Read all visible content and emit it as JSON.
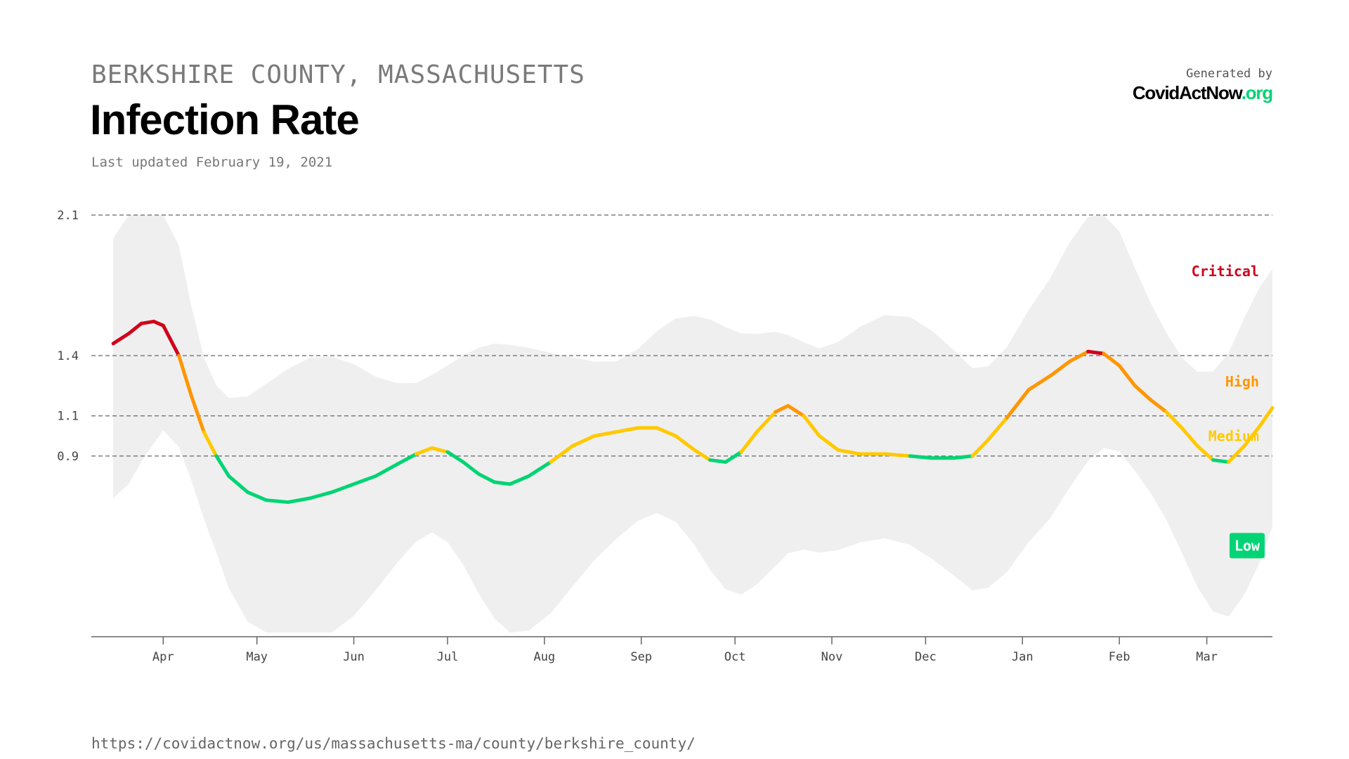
{
  "header": {
    "region": "BERKSHIRE COUNTY, MASSACHUSETTS",
    "title": "Infection Rate",
    "updated": "Last updated February 19, 2021"
  },
  "brand": {
    "caption": "Generated by",
    "logo_part1": "CovidActNow",
    "logo_part2": ".org"
  },
  "footer": {
    "url": "https://covidactnow.org/us/massachusetts-ma/county/berkshire_county/"
  },
  "colors": {
    "critical": "#d0021b",
    "high": "#ff9600",
    "medium": "#ffc900",
    "low": "#00d474",
    "band": "#efefef",
    "grid": "#666666"
  },
  "chart_data": {
    "type": "line",
    "title": "Infection Rate",
    "xlabel": "",
    "ylabel": "",
    "x_range": [
      "2020-03-09",
      "2021-03-22"
    ],
    "ylim": [
      0.0,
      2.1
    ],
    "y_ticks": [
      0.9,
      1.1,
      1.4,
      2.1
    ],
    "y_tick_labels": [
      "0.9",
      "1.1",
      "1.4",
      "2.1"
    ],
    "x_ticks": [
      {
        "date": "2020-04-01",
        "label": "Apr"
      },
      {
        "date": "2020-05-01",
        "label": "May"
      },
      {
        "date": "2020-06-01",
        "label": "Jun"
      },
      {
        "date": "2020-07-01",
        "label": "Jul"
      },
      {
        "date": "2020-08-01",
        "label": "Aug"
      },
      {
        "date": "2020-09-01",
        "label": "Sep"
      },
      {
        "date": "2020-10-01",
        "label": "Oct"
      },
      {
        "date": "2020-11-01",
        "label": "Nov"
      },
      {
        "date": "2020-12-01",
        "label": "Dec"
      },
      {
        "date": "2021-01-01",
        "label": "Jan"
      },
      {
        "date": "2021-02-01",
        "label": "Feb"
      },
      {
        "date": "2021-03-01",
        "label": "Mar"
      }
    ],
    "grid": "dashed horizontal at thresholds",
    "zones": [
      {
        "name": "Critical",
        "from": 1.4,
        "to": 2.1,
        "color": "#d0021b",
        "label_style": "text"
      },
      {
        "name": "High",
        "from": 1.1,
        "to": 1.4,
        "color": "#ff9600",
        "label_style": "text"
      },
      {
        "name": "Medium",
        "from": 0.9,
        "to": 1.1,
        "color": "#ffc900",
        "label_style": "text"
      },
      {
        "name": "Low",
        "from": 0.0,
        "to": 0.9,
        "color": "#00d474",
        "label_style": "badge"
      }
    ],
    "series": [
      {
        "values": [
          [
            "2020-03-16",
            1.46
          ],
          [
            "2020-03-21",
            1.51
          ],
          [
            "2020-03-25",
            1.56
          ],
          [
            "2020-03-29",
            1.57
          ],
          [
            "2020-04-01",
            1.55
          ],
          [
            "2020-04-06",
            1.4
          ],
          [
            "2020-04-10",
            1.2
          ],
          [
            "2020-04-14",
            1.02
          ],
          [
            "2020-04-18",
            0.9
          ],
          [
            "2020-04-22",
            0.8
          ],
          [
            "2020-04-28",
            0.72
          ],
          [
            "2020-05-04",
            0.68
          ],
          [
            "2020-05-11",
            0.67
          ],
          [
            "2020-05-18",
            0.69
          ],
          [
            "2020-05-25",
            0.72
          ],
          [
            "2020-06-01",
            0.76
          ],
          [
            "2020-06-08",
            0.8
          ],
          [
            "2020-06-15",
            0.86
          ],
          [
            "2020-06-21",
            0.91
          ],
          [
            "2020-06-26",
            0.94
          ],
          [
            "2020-07-01",
            0.92
          ],
          [
            "2020-07-06",
            0.87
          ],
          [
            "2020-07-11",
            0.81
          ],
          [
            "2020-07-16",
            0.77
          ],
          [
            "2020-07-21",
            0.76
          ],
          [
            "2020-07-27",
            0.8
          ],
          [
            "2020-08-03",
            0.87
          ],
          [
            "2020-08-10",
            0.95
          ],
          [
            "2020-08-17",
            1.0
          ],
          [
            "2020-08-24",
            1.02
          ],
          [
            "2020-08-31",
            1.04
          ],
          [
            "2020-09-06",
            1.04
          ],
          [
            "2020-09-12",
            1.0
          ],
          [
            "2020-09-18",
            0.93
          ],
          [
            "2020-09-23",
            0.88
          ],
          [
            "2020-09-28",
            0.87
          ],
          [
            "2020-10-03",
            0.92
          ],
          [
            "2020-10-08",
            1.02
          ],
          [
            "2020-10-14",
            1.12
          ],
          [
            "2020-10-18",
            1.15
          ],
          [
            "2020-10-23",
            1.1
          ],
          [
            "2020-10-28",
            1.0
          ],
          [
            "2020-11-03",
            0.93
          ],
          [
            "2020-11-10",
            0.91
          ],
          [
            "2020-11-18",
            0.91
          ],
          [
            "2020-11-26",
            0.9
          ],
          [
            "2020-12-03",
            0.89
          ],
          [
            "2020-12-10",
            0.89
          ],
          [
            "2020-12-16",
            0.9
          ],
          [
            "2020-12-21",
            0.98
          ],
          [
            "2020-12-27",
            1.09
          ],
          [
            "2021-01-03",
            1.23
          ],
          [
            "2021-01-10",
            1.3
          ],
          [
            "2021-01-16",
            1.37
          ],
          [
            "2021-01-22",
            1.42
          ],
          [
            "2021-01-27",
            1.41
          ],
          [
            "2021-02-01",
            1.35
          ],
          [
            "2021-02-06",
            1.25
          ],
          [
            "2021-02-11",
            1.18
          ],
          [
            "2021-02-16",
            1.12
          ],
          [
            "2021-02-21",
            1.04
          ],
          [
            "2021-02-26",
            0.95
          ],
          [
            "2021-03-03",
            0.88
          ],
          [
            "2021-03-08",
            0.87
          ],
          [
            "2021-03-13",
            0.95
          ],
          [
            "2021-03-18",
            1.05
          ],
          [
            "2021-03-22",
            1.14
          ]
        ]
      }
    ]
  }
}
